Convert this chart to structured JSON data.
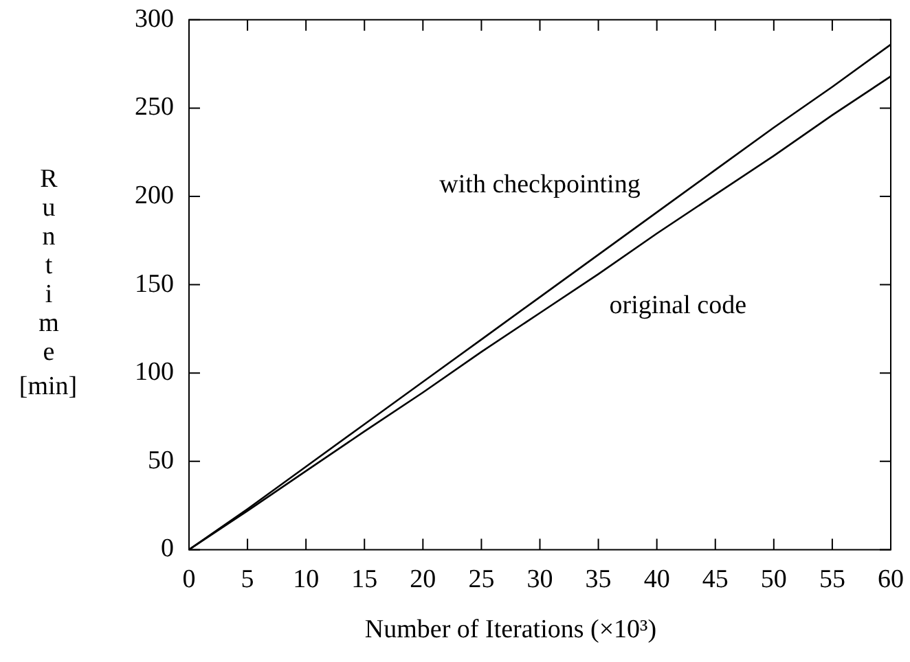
{
  "chart_data": {
    "type": "line",
    "xlabel": "Number of Iterations (×10³)",
    "ylabel": "Runtime [min]",
    "x": [
      0,
      5,
      10,
      15,
      20,
      25,
      30,
      35,
      40,
      45,
      50,
      55,
      60
    ],
    "series": [
      {
        "name": "original code",
        "color": "#000000",
        "values": [
          0,
          22,
          44.5,
          67,
          89,
          112,
          134,
          156,
          179,
          201,
          223,
          246,
          268
        ]
      },
      {
        "name": "with checkpointing",
        "color": "#000000",
        "values": [
          0,
          23,
          47,
          71,
          95,
          119,
          143,
          167,
          191,
          215,
          239,
          262,
          286
        ]
      }
    ],
    "xlim": [
      0,
      60
    ],
    "xticks": [
      0,
      5,
      10,
      15,
      20,
      25,
      30,
      35,
      40,
      45,
      50,
      55,
      60
    ],
    "ylim": [
      0,
      300
    ],
    "yticks": [
      0,
      50,
      100,
      150,
      200,
      250,
      300
    ],
    "grid": false,
    "legend": false,
    "marker": "none",
    "line_style": "solid"
  }
}
